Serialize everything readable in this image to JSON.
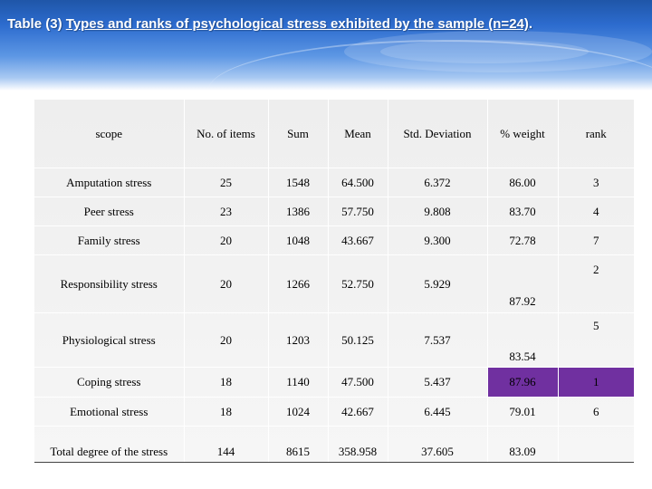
{
  "title": {
    "prefix": "Table (3) ",
    "underlined": "Types and ranks of psychological stress exhibited by the sample (n=24)",
    "suffix": "."
  },
  "colors": {
    "header_dark": "#1f56a8",
    "table_bg": "#eeeeee",
    "highlight": "#7030a0"
  },
  "table": {
    "headers": {
      "scope": "scope",
      "items": "No. of items",
      "sum": "Sum",
      "mean": "Mean",
      "sd": "Std. Deviation",
      "weight": "% weight",
      "rank": "rank"
    },
    "rows": [
      {
        "scope": "Amputation stress",
        "items": "25",
        "sum": "1548",
        "mean": "64.500",
        "sd": "6.372",
        "weight": "86.00",
        "rank": "3"
      },
      {
        "scope": "Peer stress",
        "items": "23",
        "sum": "1386",
        "mean": "57.750",
        "sd": "9.808",
        "weight": "83.70",
        "rank": "4"
      },
      {
        "scope": "Family stress",
        "items": "20",
        "sum": "1048",
        "mean": "43.667",
        "sd": "9.300",
        "weight": "72.78",
        "rank": "7"
      },
      {
        "scope": "Responsibility stress",
        "items": "20",
        "sum": "1266",
        "mean": "52.750",
        "sd": "5.929",
        "weight": "87.92",
        "rank": "2"
      },
      {
        "scope": "Physiological stress",
        "items": "20",
        "sum": "1203",
        "mean": "50.125",
        "sd": "7.537",
        "weight": "83.54",
        "rank": "5"
      },
      {
        "scope": "Coping stress",
        "items": "18",
        "sum": "1140",
        "mean": "47.500",
        "sd": "5.437",
        "weight": "87.96",
        "rank": "1"
      },
      {
        "scope": "Emotional stress",
        "items": "18",
        "sum": "1024",
        "mean": "42.667",
        "sd": "6.445",
        "weight": "79.01",
        "rank": "6"
      }
    ],
    "total": {
      "scope": "Total degree of the stress",
      "items": "144",
      "sum": "8615",
      "mean": "358.958",
      "sd": "37.605",
      "weight": "83.09",
      "rank": ""
    }
  }
}
